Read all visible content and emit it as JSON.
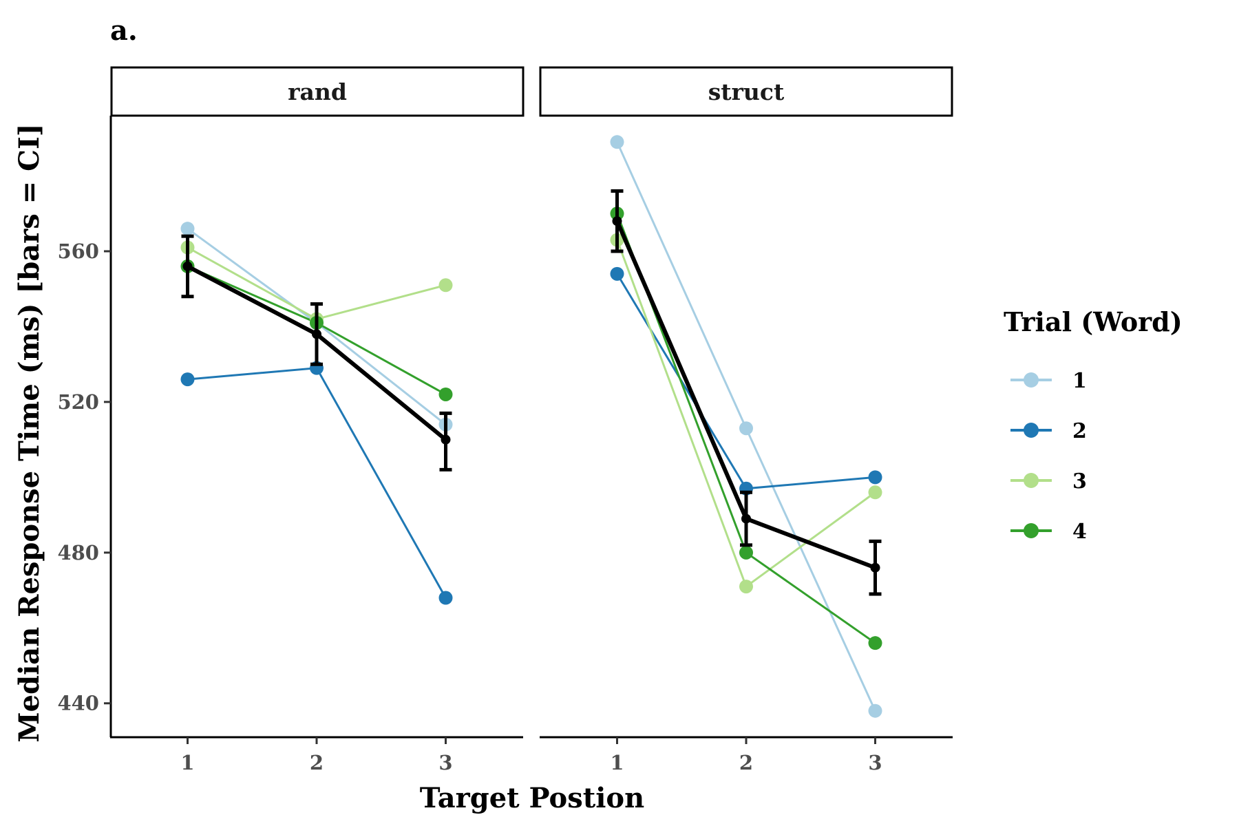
{
  "chart_data": {
    "type": "line",
    "tag": "a.",
    "xlabel": "Target Postion",
    "ylabel": "Median Response Time (ms) [bars = CI]",
    "x": [
      1,
      2,
      3
    ],
    "x_tick_labels": [
      "1",
      "2",
      "3"
    ],
    "y_ticks": [
      440,
      480,
      520,
      560
    ],
    "ylim": [
      431,
      596
    ],
    "grid": false,
    "legend": {
      "title": "Trial (Word)",
      "position": "right",
      "entries": [
        "1",
        "2",
        "3",
        "4"
      ]
    },
    "series_colors": [
      "#a6cee3",
      "#1f78b4",
      "#b2df8a",
      "#33a02c"
    ],
    "mean_color": "#000000",
    "panels": [
      {
        "strip": "rand",
        "series": [
          {
            "name": "1",
            "values": [
              566,
              541,
              514
            ]
          },
          {
            "name": "2",
            "values": [
              526,
              529,
              468
            ]
          },
          {
            "name": "3",
            "values": [
              561,
              542,
              551
            ]
          },
          {
            "name": "4",
            "values": [
              556,
              541,
              522
            ]
          }
        ],
        "mean": {
          "values": [
            556,
            538,
            510
          ],
          "ci_low": [
            548,
            530,
            502
          ],
          "ci_high": [
            564,
            546,
            517
          ]
        }
      },
      {
        "strip": "struct",
        "series": [
          {
            "name": "1",
            "values": [
              589,
              513,
              438
            ]
          },
          {
            "name": "2",
            "values": [
              554,
              497,
              500
            ]
          },
          {
            "name": "3",
            "values": [
              563,
              471,
              496
            ]
          },
          {
            "name": "4",
            "values": [
              570,
              480,
              456
            ]
          }
        ],
        "mean": {
          "values": [
            568,
            489,
            476
          ],
          "ci_low": [
            560,
            482,
            469
          ],
          "ci_high": [
            576,
            496,
            483
          ]
        }
      }
    ]
  }
}
